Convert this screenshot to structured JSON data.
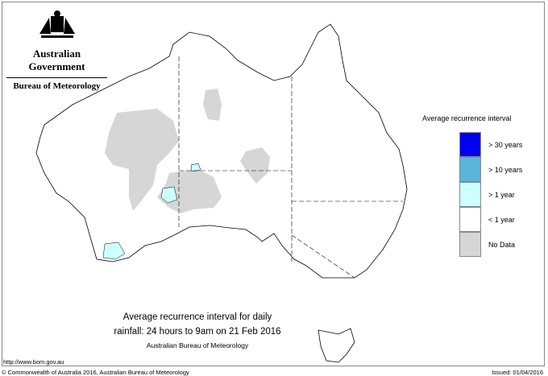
{
  "header": {
    "government": "Australian Government",
    "agency": "Bureau of Meteorology"
  },
  "legend": {
    "title": "Average recurrence interval",
    "items": [
      {
        "label": "> 30 years",
        "color": "#0000ee"
      },
      {
        "label": "> 10 years",
        "color": "#5ab4dc"
      },
      {
        "label": "> 1 year",
        "color": "#ccffff"
      },
      {
        "label": "< 1 year",
        "color": "#ffffff"
      },
      {
        "label": "No Data",
        "color": "#d6d6d6"
      }
    ]
  },
  "caption": {
    "line1": "Average recurrence interval for daily",
    "line2": "rainfall: 24 hours to 9am on 21 Feb 2016",
    "line3": "Australian Bureau of Meteorology"
  },
  "footer": {
    "url": "http://www.bom.gov.au",
    "copyright": "© Commonwealth of Australia 2016, Australian Bureau of Meteorology",
    "issued": "Issued: 01/04/2016"
  }
}
